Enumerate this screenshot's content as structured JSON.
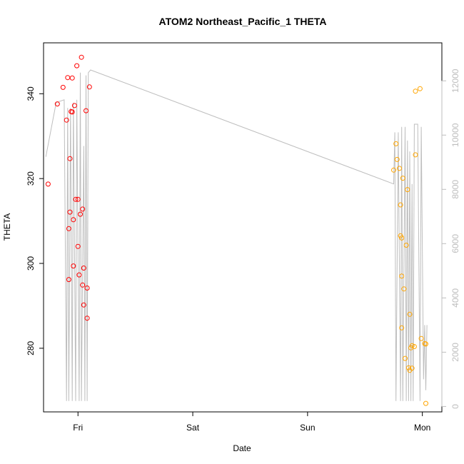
{
  "chart_data": {
    "type": "scatter",
    "title": "ATOM2 Northeast_Pacific_1 THETA",
    "xlabel": "Date",
    "ylabel": "THETA",
    "x_ticks": [
      "Fri",
      "Sat",
      "Sun",
      "Mon"
    ],
    "x_tick_positions": [
      1.0,
      2.0,
      3.0,
      4.0
    ],
    "xlim": [
      0.7,
      4.17
    ],
    "ylim": [
      265,
      352
    ],
    "y_ticks": [
      280,
      300,
      320,
      340
    ],
    "y2lim": [
      -200,
      13400
    ],
    "y2_ticks": [
      0,
      2000,
      4000,
      6000,
      8000,
      10000,
      12000
    ],
    "grid": false,
    "legend": "none",
    "colors": {
      "series1": "#ff0000",
      "series2": "#ffa500",
      "depth_line": "#bebebe",
      "right_axis": "#bdbdbd"
    },
    "series": [
      {
        "color": "#ff0000",
        "x": [
          0.74,
          0.82,
          0.87,
          0.9,
          0.91,
          0.92,
          0.92,
          0.93,
          0.93,
          0.94,
          0.95,
          0.95,
          0.96,
          0.96,
          0.97,
          0.98,
          0.99,
          1.0,
          1.0,
          1.01,
          1.02,
          1.03,
          1.04,
          1.04,
          1.05,
          1.05,
          1.07,
          1.08,
          1.08,
          1.1
        ],
        "y": [
          318.7,
          337.6,
          341.5,
          333.8,
          343.8,
          308.2,
          296.2,
          324.7,
          312.1,
          335.8,
          343.7,
          335.7,
          310.3,
          299.4,
          337.2,
          315.1,
          346.6,
          315.1,
          304.0,
          297.3,
          311.6,
          348.6,
          312.8,
          294.9,
          290.2,
          298.9,
          336.0,
          287.1,
          294.2,
          341.6
        ]
      },
      {
        "color": "#ffa500",
        "x": [
          3.75,
          3.77,
          3.78,
          3.8,
          3.81,
          3.81,
          3.82,
          3.82,
          3.82,
          3.83,
          3.84,
          3.85,
          3.86,
          3.87,
          3.88,
          3.89,
          3.89,
          3.9,
          3.91,
          3.91,
          3.93,
          3.94,
          3.94,
          3.98,
          3.99,
          4.02,
          4.03,
          4.03
        ],
        "y": [
          322.0,
          328.2,
          324.5,
          322.4,
          313.8,
          306.5,
          297.0,
          284.8,
          306.0,
          320.1,
          294.0,
          277.6,
          304.3,
          317.4,
          275.4,
          274.8,
          288.0,
          280.1,
          280.6,
          275.3,
          280.4,
          340.6,
          325.6,
          341.2,
          282.3,
          281.1,
          267.0,
          281.0
        ]
      }
    ],
    "depth_profile": {
      "axis": "right",
      "x": [
        0.72,
        0.81,
        0.88,
        0.9,
        0.91,
        0.92,
        0.935,
        0.95,
        0.96,
        0.98,
        0.99,
        1.01,
        1.02,
        1.03,
        1.05,
        1.06,
        1.07,
        1.08,
        1.09,
        1.11,
        3.75,
        3.76,
        3.77,
        3.79,
        3.81,
        3.82,
        3.83,
        3.85,
        3.86,
        3.87,
        3.88,
        3.89,
        3.9,
        3.91,
        3.92,
        3.93,
        3.96,
        3.98,
        3.99,
        4.01,
        4.02,
        4.03,
        4.04
      ],
      "y": [
        9200,
        11200,
        11300,
        200,
        11000,
        200,
        11000,
        200,
        11200,
        200,
        11300,
        200,
        12300,
        200,
        9600,
        200,
        12200,
        200,
        12300,
        12400,
        8200,
        10100,
        200,
        10100,
        200,
        10300,
        200,
        10300,
        200,
        9800,
        200,
        9400,
        200,
        8200,
        200,
        10400,
        10400,
        200,
        10300,
        1000,
        3000,
        600,
        3000
      ]
    }
  }
}
